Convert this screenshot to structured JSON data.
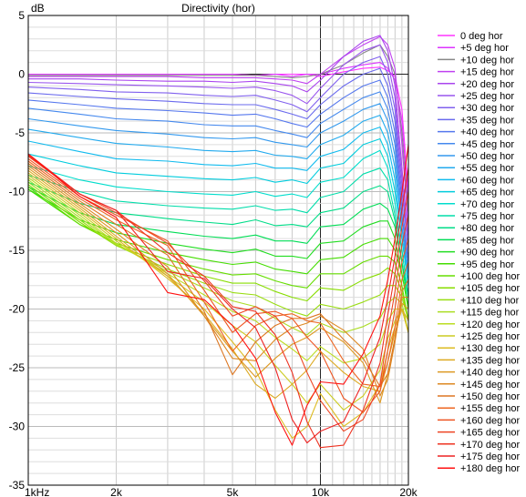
{
  "chart_data": {
    "type": "line",
    "title": "Directivity (hor)",
    "ylabel": "dB",
    "xlabel": "",
    "xscale": "log",
    "xlim": [
      1000,
      20000
    ],
    "ylim": [
      -35,
      5
    ],
    "yticks": [
      5,
      0,
      -5,
      -10,
      -15,
      -20,
      -25,
      -30,
      -35
    ],
    "xticks": [
      {
        "value": 1000,
        "label": "1kHz"
      },
      {
        "value": 2000,
        "label": "2k"
      },
      {
        "value": 5000,
        "label": "5k"
      },
      {
        "value": 10000,
        "label": "10k"
      },
      {
        "value": 20000,
        "label": "20k"
      }
    ],
    "grid": true,
    "legend_position": "right",
    "x": [
      1000,
      1500,
      2000,
      3000,
      4000,
      5000,
      6000,
      7000,
      8000,
      9000,
      10000,
      12000,
      14000,
      16000,
      17000,
      18000,
      19000,
      20000
    ],
    "series": [
      {
        "name": "0 deg hor",
        "color": "#ff33ff",
        "values": [
          0,
          0,
          0,
          0,
          0,
          0,
          -0.1,
          0,
          0,
          0,
          -0.2,
          0.2,
          0.5,
          0.6,
          0.3,
          -0.2,
          -3,
          -10
        ]
      },
      {
        "name": "+5 deg hor",
        "color": "#dd33ff",
        "values": [
          0,
          0,
          0,
          0,
          0,
          0,
          -0.1,
          0,
          -0.2,
          0,
          0,
          0.5,
          0.8,
          1,
          0.5,
          -0.5,
          -4,
          -11
        ]
      },
      {
        "name": "+10 deg hor",
        "color": "#888888",
        "values": [
          -0.1,
          -0.1,
          -0.1,
          -0.1,
          -0.1,
          -0.1,
          -0.1,
          -0.2,
          -0.3,
          -0.2,
          0,
          0.8,
          1.8,
          2.5,
          1.5,
          0,
          -5,
          -12
        ]
      },
      {
        "name": "+15 deg hor",
        "color": "#c040f0",
        "values": [
          -0.2,
          -0.2,
          -0.2,
          -0.2,
          -0.3,
          -0.3,
          -0.3,
          -0.4,
          -0.5,
          -0.8,
          0,
          1.5,
          2.5,
          3.2,
          2.5,
          0.5,
          -6,
          -13
        ]
      },
      {
        "name": "+20 deg hor",
        "color": "#aa44ee",
        "values": [
          -0.4,
          -0.4,
          -0.5,
          -0.6,
          -0.6,
          -0.7,
          -0.6,
          -0.8,
          -1,
          -1.5,
          -0.5,
          1.5,
          2.8,
          3.3,
          2,
          -1,
          -8,
          -14
        ]
      },
      {
        "name": "+25 deg hor",
        "color": "#9955ee",
        "values": [
          -0.7,
          -0.8,
          -0.9,
          -1,
          -1.1,
          -1.2,
          -1.1,
          -1.4,
          -1.8,
          -2.5,
          -1.2,
          0.8,
          2,
          2.5,
          1,
          -2,
          -9,
          -15
        ]
      },
      {
        "name": "+30 deg hor",
        "color": "#8060ee",
        "values": [
          -1.1,
          -1.3,
          -1.5,
          -1.6,
          -1.8,
          -1.9,
          -1.8,
          -2.2,
          -2.6,
          -3.2,
          -2,
          0,
          1,
          1.5,
          0,
          -3,
          -10,
          -15
        ]
      },
      {
        "name": "+35 deg hor",
        "color": "#6a6aee",
        "values": [
          -1.6,
          -1.9,
          -2.1,
          -2.3,
          -2.5,
          -2.6,
          -2.6,
          -3,
          -3.4,
          -3.8,
          -2.6,
          -1,
          0,
          0.5,
          -1,
          -4,
          -11,
          -16
        ]
      },
      {
        "name": "+40 deg hor",
        "color": "#5577ee",
        "values": [
          -2.2,
          -2.6,
          -2.9,
          -3.1,
          -3.3,
          -3.5,
          -3.4,
          -3.8,
          -4.2,
          -4.5,
          -3.4,
          -2,
          -1,
          -0.5,
          -2,
          -5,
          -12,
          -16
        ]
      },
      {
        "name": "+45 deg hor",
        "color": "#4488ee",
        "values": [
          -2.9,
          -3.4,
          -3.8,
          -4,
          -4.3,
          -4.4,
          -4.4,
          -4.8,
          -5.1,
          -5.4,
          -4.2,
          -3,
          -2,
          -1.5,
          -3,
          -6,
          -12,
          -17
        ]
      },
      {
        "name": "+50 deg hor",
        "color": "#3399ee",
        "values": [
          -3.8,
          -4.4,
          -4.8,
          -5.1,
          -5.4,
          -5.5,
          -5.4,
          -5.8,
          -6,
          -6.2,
          -5,
          -4,
          -3,
          -2.5,
          -4,
          -7,
          -13,
          -17
        ]
      },
      {
        "name": "+55 deg hor",
        "color": "#22aaee",
        "values": [
          -4.7,
          -5.4,
          -5.9,
          -6.2,
          -6.5,
          -6.6,
          -6.5,
          -6.9,
          -7,
          -7.2,
          -6,
          -5.2,
          -4,
          -3.5,
          -5,
          -8,
          -13,
          -18
        ]
      },
      {
        "name": "+60 deg hor",
        "color": "#11bbee",
        "values": [
          -5.7,
          -6.6,
          -7.2,
          -7.4,
          -7.7,
          -7.8,
          -7.6,
          -8,
          -8,
          -8.2,
          -7,
          -6.4,
          -5,
          -4.5,
          -6,
          -9,
          -14,
          -18
        ]
      },
      {
        "name": "+65 deg hor",
        "color": "#00ccdd",
        "values": [
          -6.8,
          -7.8,
          -8.4,
          -8.7,
          -8.9,
          -9,
          -8.8,
          -9.2,
          -9,
          -9.3,
          -8,
          -7.6,
          -6,
          -5.5,
          -7,
          -10,
          -14,
          -18
        ]
      },
      {
        "name": "+70 deg hor",
        "color": "#00ddcc",
        "values": [
          -7.8,
          -9,
          -9.6,
          -10,
          -10.2,
          -10.3,
          -10,
          -10.4,
          -10.2,
          -10.5,
          -9.2,
          -8.8,
          -7.2,
          -6.5,
          -8,
          -11,
          -15,
          -19
        ]
      },
      {
        "name": "+75 deg hor",
        "color": "#00ddaa",
        "values": [
          -8.6,
          -10,
          -10.8,
          -11.2,
          -11.4,
          -11.5,
          -11.2,
          -11.6,
          -11.5,
          -11.8,
          -10.5,
          -10,
          -8.5,
          -8,
          -9,
          -12,
          -15,
          -19
        ]
      },
      {
        "name": "+80 deg hor",
        "color": "#00dd88",
        "values": [
          -9.2,
          -11,
          -11.8,
          -12.3,
          -12.6,
          -12.8,
          -12.4,
          -12.9,
          -12.8,
          -13,
          -11.8,
          -11.4,
          -10,
          -9.5,
          -10,
          -12.5,
          -16,
          -19
        ]
      },
      {
        "name": "+85 deg hor",
        "color": "#00dd55",
        "values": [
          -9.6,
          -11.8,
          -12.8,
          -13.4,
          -13.8,
          -14,
          -13.7,
          -14.2,
          -14.2,
          -14.4,
          -13,
          -12.8,
          -11.5,
          -11,
          -11.5,
          -13,
          -16,
          -20
        ]
      },
      {
        "name": "+90 deg hor",
        "color": "#22dd22",
        "values": [
          -9.8,
          -12.4,
          -13.5,
          -14.4,
          -14.9,
          -15.2,
          -14.9,
          -15.5,
          -15.5,
          -15.7,
          -14.4,
          -14.2,
          -13,
          -12.5,
          -12.5,
          -14,
          -17,
          -20
        ]
      },
      {
        "name": "+95 deg hor",
        "color": "#44dd00",
        "values": [
          -9.8,
          -12.8,
          -14.1,
          -15.2,
          -15.8,
          -16.2,
          -16,
          -16.6,
          -16.8,
          -17,
          -15.8,
          -15.6,
          -14.5,
          -14,
          -14,
          -15,
          -17,
          -20
        ]
      },
      {
        "name": "+100 deg hor",
        "color": "#66dd00",
        "values": [
          -9.6,
          -12.8,
          -14.4,
          -15.8,
          -16.6,
          -17.1,
          -17,
          -17.6,
          -18,
          -18.2,
          -17,
          -17,
          -16,
          -15.5,
          -15.5,
          -16,
          -18,
          -21
        ]
      },
      {
        "name": "+105 deg hor",
        "color": "#88dd00",
        "values": [
          -9.4,
          -12.6,
          -14.6,
          -16.2,
          -17.2,
          -17.8,
          -17.8,
          -18.5,
          -19,
          -19.3,
          -18.2,
          -18.4,
          -17.5,
          -17,
          -16.5,
          -17,
          -18.5,
          -21
        ]
      },
      {
        "name": "+110 deg hor",
        "color": "#99dd11",
        "values": [
          -9.2,
          -12.4,
          -14.6,
          -16.6,
          -17.8,
          -18.6,
          -18.8,
          -19.6,
          -20.2,
          -20.6,
          -19.6,
          -20,
          -19.4,
          -18.8,
          -18,
          -18,
          -19,
          -21
        ]
      },
      {
        "name": "+115 deg hor",
        "color": "#aadd22",
        "values": [
          -9,
          -12.2,
          -14.5,
          -16.8,
          -18.2,
          -19.3,
          -19.8,
          -20.8,
          -21.6,
          -22.2,
          -21.2,
          -22,
          -21.5,
          -20.8,
          -19.5,
          -19,
          -19.5,
          -22
        ]
      },
      {
        "name": "+120 deg hor",
        "color": "#bbdd22",
        "values": [
          -8.8,
          -12,
          -14.4,
          -17,
          -18.8,
          -20.2,
          -21,
          -22.4,
          -23.4,
          -24.4,
          -23.2,
          -24.6,
          -24.2,
          -23,
          -21,
          -20,
          -20,
          -22
        ]
      },
      {
        "name": "+125 deg hor",
        "color": "#cccc22",
        "values": [
          -8.6,
          -11.8,
          -14.2,
          -17.2,
          -19.4,
          -21.4,
          -22.8,
          -24.8,
          -26.4,
          -28,
          -26.4,
          -28.6,
          -27.4,
          -25.2,
          -22.5,
          -21,
          -20,
          -22
        ]
      },
      {
        "name": "+130 deg hor",
        "color": "#ddbb22",
        "values": [
          -8.4,
          -11.6,
          -14,
          -17.4,
          -20,
          -22.8,
          -25.2,
          -28.6,
          -31,
          -30,
          -27.2,
          -30,
          -28.8,
          -26.4,
          -23.5,
          -21.5,
          -20,
          -22
        ]
      },
      {
        "name": "+135 deg hor",
        "color": "#ddaa22",
        "values": [
          -8.2,
          -11.4,
          -13.8,
          -17.2,
          -20.4,
          -23.4,
          -26.4,
          -27.6,
          -26.4,
          -25.2,
          -23.6,
          -25.4,
          -26.6,
          -27,
          -24.5,
          -22,
          -20,
          -21
        ]
      },
      {
        "name": "+140 deg hor",
        "color": "#dd9922",
        "values": [
          -8,
          -11.2,
          -13.5,
          -17,
          -20.6,
          -23.6,
          -25.8,
          -24.2,
          -23,
          -22.4,
          -21.6,
          -22.8,
          -24.6,
          -28,
          -25.5,
          -22.5,
          -19.5,
          -20
        ]
      },
      {
        "name": "+145 deg hor",
        "color": "#dd8822",
        "values": [
          -7.8,
          -11,
          -13.2,
          -16.4,
          -20.6,
          -24.2,
          -24.4,
          -22.6,
          -21.6,
          -21.2,
          -20.6,
          -21.8,
          -23.4,
          -27.4,
          -26,
          -22.8,
          -19,
          -19
        ]
      },
      {
        "name": "+150 deg hor",
        "color": "#dd7722",
        "values": [
          -7.6,
          -10.8,
          -12.8,
          -15.4,
          -20.2,
          -25.6,
          -22.8,
          -21.4,
          -20.8,
          -20.8,
          -20.4,
          -22.6,
          -24.2,
          -26.6,
          -25.5,
          -22.5,
          -18.5,
          -17.5
        ]
      },
      {
        "name": "+155 deg hor",
        "color": "#ee6622",
        "values": [
          -7.4,
          -10.6,
          -12.4,
          -14.6,
          -19.4,
          -23.6,
          -21.4,
          -20.6,
          -20.4,
          -21,
          -21.2,
          -24.4,
          -26.4,
          -26.6,
          -24.5,
          -21.5,
          -17.5,
          -16
        ]
      },
      {
        "name": "+160 deg hor",
        "color": "#ee5522",
        "values": [
          -7.2,
          -10.4,
          -12,
          -14.2,
          -18.4,
          -22,
          -20.4,
          -20.2,
          -20.8,
          -22.4,
          -23.6,
          -27.6,
          -28.8,
          -27,
          -23.5,
          -20,
          -16,
          -14
        ]
      },
      {
        "name": "+165 deg hor",
        "color": "#ee4422",
        "values": [
          -7,
          -10.2,
          -11.8,
          -14.4,
          -17.6,
          -20.6,
          -19.8,
          -20.6,
          -22.4,
          -25.4,
          -27.8,
          -30.4,
          -29.4,
          -26.4,
          -22,
          -18.5,
          -14.5,
          -12
        ]
      },
      {
        "name": "+170 deg hor",
        "color": "#ee3322",
        "values": [
          -6.9,
          -10.2,
          -11.6,
          -15.2,
          -17.2,
          -19.8,
          -20.2,
          -22.2,
          -25.4,
          -29.6,
          -31.8,
          -31.6,
          -28.6,
          -24.6,
          -20.5,
          -17,
          -13,
          -10
        ]
      },
      {
        "name": "+175 deg hor",
        "color": "#ee2222",
        "values": [
          -6.8,
          -10.2,
          -11.6,
          -16.8,
          -17.4,
          -20,
          -21.6,
          -25,
          -29.4,
          -31.4,
          -30.4,
          -29.6,
          -26.2,
          -22.4,
          -19,
          -15.5,
          -11.5,
          -8
        ]
      },
      {
        "name": "+180 deg hor",
        "color": "#ff1111",
        "values": [
          -6.8,
          -10.4,
          -12.2,
          -18.6,
          -19.2,
          -21.4,
          -24.2,
          -28.8,
          -31.6,
          -28.2,
          -26.2,
          -26.4,
          -23.8,
          -20.6,
          -17.5,
          -14,
          -10,
          -6
        ]
      }
    ]
  }
}
